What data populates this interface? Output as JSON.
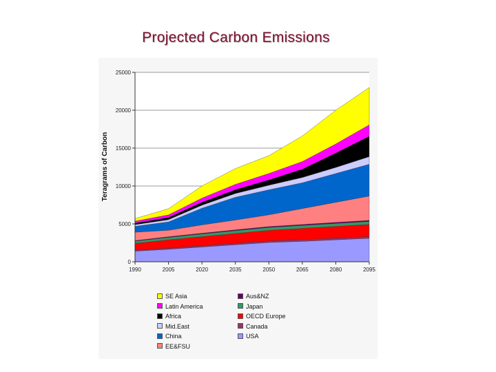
{
  "slide": {
    "title": "Projected Carbon Emissions"
  },
  "chart_data": {
    "type": "area",
    "stacked": true,
    "title": "",
    "xlabel": "",
    "ylabel": "Teragrams of Carbon",
    "x": [
      1990,
      2005,
      2020,
      2035,
      2050,
      2065,
      2080,
      2095
    ],
    "ylim": [
      0,
      25000
    ],
    "yticks": [
      0,
      5000,
      10000,
      15000,
      20000,
      25000
    ],
    "grid": true,
    "legend_position": "bottom",
    "series": [
      {
        "name": "USA",
        "color": "#9999ff",
        "values": [
          1400,
          1650,
          1950,
          2250,
          2550,
          2700,
          2900,
          3100
        ]
      },
      {
        "name": "Canada",
        "color": "#993366",
        "values": [
          130,
          150,
          170,
          185,
          200,
          210,
          220,
          230
        ]
      },
      {
        "name": "OECD Europe",
        "color": "#ff0000",
        "values": [
          900,
          1100,
          1200,
          1300,
          1400,
          1500,
          1550,
          1600
        ]
      },
      {
        "name": "Japan",
        "color": "#339966",
        "values": [
          290,
          320,
          350,
          370,
          380,
          385,
          390,
          390
        ]
      },
      {
        "name": "Aus&NZ",
        "color": "#660066",
        "values": [
          80,
          90,
          100,
          110,
          120,
          130,
          140,
          150
        ]
      },
      {
        "name": "EE&FSU",
        "color": "#ff8080",
        "values": [
          1100,
          850,
          1100,
          1300,
          1550,
          2100,
          2650,
          3200
        ]
      },
      {
        "name": "China",
        "color": "#0066cc",
        "values": [
          780,
          1100,
          2200,
          3000,
          3300,
          3400,
          3800,
          4200
        ]
      },
      {
        "name": "Mid.East",
        "color": "#ccccff",
        "values": [
          220,
          300,
          400,
          500,
          600,
          700,
          800,
          1000
        ]
      },
      {
        "name": "Africa",
        "color": "#000000",
        "values": [
          200,
          280,
          380,
          500,
          700,
          1100,
          1900,
          2700
        ]
      },
      {
        "name": "Latin America",
        "color": "#ff00ff",
        "values": [
          260,
          350,
          550,
          700,
          850,
          1000,
          1200,
          1500
        ]
      },
      {
        "name": "SE Asia",
        "color": "#ffff00",
        "values": [
          340,
          810,
          1600,
          2085,
          2350,
          3375,
          4450,
          4930
        ]
      }
    ],
    "legend": {
      "left_column": [
        "SE Asia",
        "Latin America",
        "Africa",
        "Mid.East",
        "China",
        "EE&FSU"
      ],
      "right_column": [
        "Aus&NZ",
        "Japan",
        "OECD Europe",
        "Canada",
        "USA"
      ]
    }
  }
}
